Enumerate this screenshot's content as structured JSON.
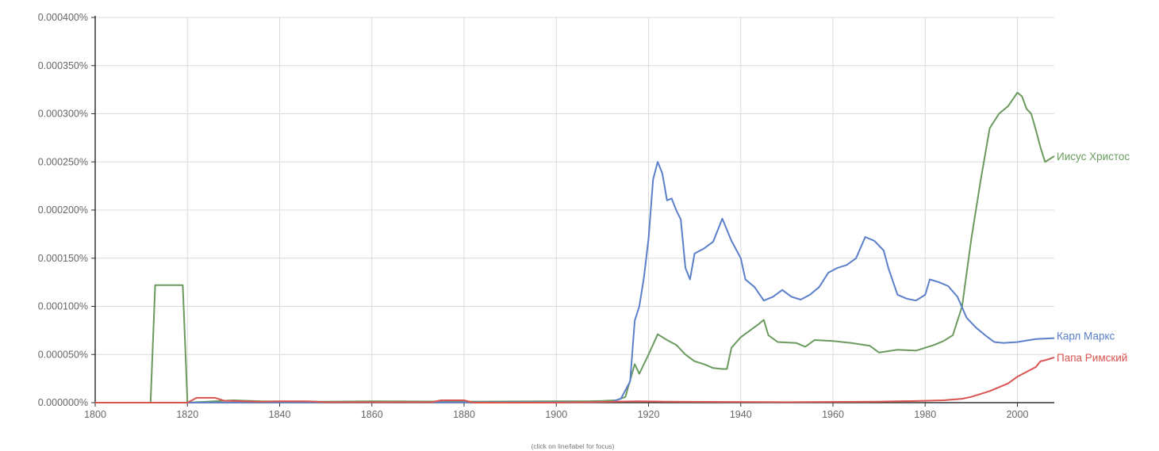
{
  "chart_data": {
    "type": "line",
    "title": "",
    "xlabel": "",
    "ylabel": "",
    "footnote": "(click on line/label for focus)",
    "xlim": [
      1800,
      2008
    ],
    "ylim": [
      0,
      0.0004
    ],
    "grid": true,
    "legend": "inline-labels-right",
    "x_ticks": [
      1800,
      1820,
      1840,
      1860,
      1880,
      1900,
      1920,
      1940,
      1960,
      1980,
      2000
    ],
    "y_ticks": [
      0,
      5e-05,
      0.0001,
      0.00015,
      0.0002,
      0.00025,
      0.0003,
      0.00035,
      0.0004
    ],
    "y_tick_labels": [
      "0.000000%",
      "0.000050%",
      "0.000100%",
      "0.000150%",
      "0.000200%",
      "0.000250%",
      "0.000300%",
      "0.000350%",
      "0.000400%"
    ],
    "series": [
      {
        "name": "Иисус Христос",
        "color": "#6a9a5e",
        "points": [
          [
            1800,
            0
          ],
          [
            1812,
            0
          ],
          [
            1813,
            0.000122
          ],
          [
            1819,
            0.000122
          ],
          [
            1820,
            0
          ],
          [
            1830,
            2.5e-06
          ],
          [
            1836,
            1.5e-06
          ],
          [
            1850,
            1e-06
          ],
          [
            1860,
            1.5e-06
          ],
          [
            1880,
            1e-06
          ],
          [
            1900,
            1.5e-06
          ],
          [
            1907,
            1.5e-06
          ],
          [
            1910,
            1.8e-06
          ],
          [
            1913,
            2.5e-06
          ],
          [
            1915,
            6e-06
          ],
          [
            1917,
            4e-05
          ],
          [
            1918,
            3e-05
          ],
          [
            1920,
            5e-05
          ],
          [
            1922,
            7.1e-05
          ],
          [
            1924,
            6.5e-05
          ],
          [
            1926,
            6e-05
          ],
          [
            1928,
            5e-05
          ],
          [
            1930,
            4.3e-05
          ],
          [
            1932,
            4e-05
          ],
          [
            1934,
            3.6e-05
          ],
          [
            1936,
            3.5e-05
          ],
          [
            1937,
            3.5e-05
          ],
          [
            1938,
            5.7e-05
          ],
          [
            1940,
            6.8e-05
          ],
          [
            1942,
            7.5e-05
          ],
          [
            1944,
            8.2e-05
          ],
          [
            1945,
            8.6e-05
          ],
          [
            1946,
            7e-05
          ],
          [
            1948,
            6.3e-05
          ],
          [
            1952,
            6.2e-05
          ],
          [
            1954,
            5.8e-05
          ],
          [
            1956,
            6.5e-05
          ],
          [
            1960,
            6.4e-05
          ],
          [
            1964,
            6.2e-05
          ],
          [
            1968,
            5.9e-05
          ],
          [
            1970,
            5.2e-05
          ],
          [
            1974,
            5.5e-05
          ],
          [
            1978,
            5.4e-05
          ],
          [
            1982,
            6e-05
          ],
          [
            1984,
            6.4e-05
          ],
          [
            1986,
            7e-05
          ],
          [
            1988,
            0.0001
          ],
          [
            1990,
            0.00017
          ],
          [
            1992,
            0.00023
          ],
          [
            1994,
            0.000285
          ],
          [
            1996,
            0.0003
          ],
          [
            1998,
            0.000308
          ],
          [
            2000,
            0.000322
          ],
          [
            2001,
            0.000318
          ],
          [
            2002,
            0.000305
          ],
          [
            2003,
            0.0003
          ],
          [
            2004,
            0.000283
          ],
          [
            2005,
            0.000265
          ],
          [
            2006,
            0.00025
          ],
          [
            2008,
            0.000256
          ]
        ]
      },
      {
        "name": "Карл Маркс",
        "color": "#5b7fc9",
        "points": [
          [
            1800,
            0
          ],
          [
            1908,
            5e-07
          ],
          [
            1912,
            1e-06
          ],
          [
            1914,
            4e-06
          ],
          [
            1916,
            2.2e-05
          ],
          [
            1917,
            8.5e-05
          ],
          [
            1918,
            0.0001
          ],
          [
            1919,
            0.00013
          ],
          [
            1920,
            0.00017
          ],
          [
            1921,
            0.000232
          ],
          [
            1922,
            0.00025
          ],
          [
            1923,
            0.000238
          ],
          [
            1924,
            0.00021
          ],
          [
            1925,
            0.000212
          ],
          [
            1926,
            0.0002
          ],
          [
            1927,
            0.00019
          ],
          [
            1928,
            0.00014
          ],
          [
            1929,
            0.000128
          ],
          [
            1930,
            0.000155
          ],
          [
            1932,
            0.00016
          ],
          [
            1934,
            0.000167
          ],
          [
            1936,
            0.000191
          ],
          [
            1938,
            0.000168
          ],
          [
            1940,
            0.00015
          ],
          [
            1941,
            0.000128
          ],
          [
            1943,
            0.00012
          ],
          [
            1945,
            0.000106
          ],
          [
            1947,
            0.00011
          ],
          [
            1949,
            0.000117
          ],
          [
            1951,
            0.00011
          ],
          [
            1953,
            0.000107
          ],
          [
            1955,
            0.000112
          ],
          [
            1957,
            0.00012
          ],
          [
            1959,
            0.000135
          ],
          [
            1961,
            0.00014
          ],
          [
            1963,
            0.000143
          ],
          [
            1965,
            0.00015
          ],
          [
            1967,
            0.000172
          ],
          [
            1969,
            0.000168
          ],
          [
            1971,
            0.000158
          ],
          [
            1972,
            0.00014
          ],
          [
            1974,
            0.000112
          ],
          [
            1976,
            0.000108
          ],
          [
            1978,
            0.000106
          ],
          [
            1980,
            0.000112
          ],
          [
            1981,
            0.000128
          ],
          [
            1983,
            0.000125
          ],
          [
            1985,
            0.000121
          ],
          [
            1987,
            0.00011
          ],
          [
            1989,
            8.8e-05
          ],
          [
            1991,
            7.8e-05
          ],
          [
            1993,
            7e-05
          ],
          [
            1995,
            6.3e-05
          ],
          [
            1997,
            6.2e-05
          ],
          [
            2000,
            6.3e-05
          ],
          [
            2004,
            6.6e-05
          ],
          [
            2008,
            6.7e-05
          ]
        ]
      },
      {
        "name": "Папа Римский",
        "color": "#d9534f",
        "points": [
          [
            1800,
            0
          ],
          [
            1820,
            0
          ],
          [
            1822,
            5e-06
          ],
          [
            1826,
            5e-06
          ],
          [
            1828,
            2e-06
          ],
          [
            1836,
            1e-06
          ],
          [
            1840,
            1.5e-06
          ],
          [
            1846,
            1.5e-06
          ],
          [
            1850,
            5e-07
          ],
          [
            1873,
            5e-07
          ],
          [
            1875,
            2.5e-06
          ],
          [
            1880,
            2.5e-06
          ],
          [
            1882,
            0
          ],
          [
            1900,
            0
          ],
          [
            1918,
            1.5e-06
          ],
          [
            1924,
            1e-06
          ],
          [
            1950,
            5e-07
          ],
          [
            1970,
            1e-06
          ],
          [
            1980,
            2e-06
          ],
          [
            1984,
            2.5e-06
          ],
          [
            1988,
            4e-06
          ],
          [
            1990,
            6e-06
          ],
          [
            1992,
            9e-06
          ],
          [
            1994,
            1.2e-05
          ],
          [
            1996,
            1.6e-05
          ],
          [
            1998,
            2e-05
          ],
          [
            2000,
            2.7e-05
          ],
          [
            2002,
            3.2e-05
          ],
          [
            2004,
            3.7e-05
          ],
          [
            2005,
            4.3e-05
          ],
          [
            2006,
            4.4e-05
          ],
          [
            2008,
            4.7e-05
          ]
        ]
      }
    ]
  }
}
